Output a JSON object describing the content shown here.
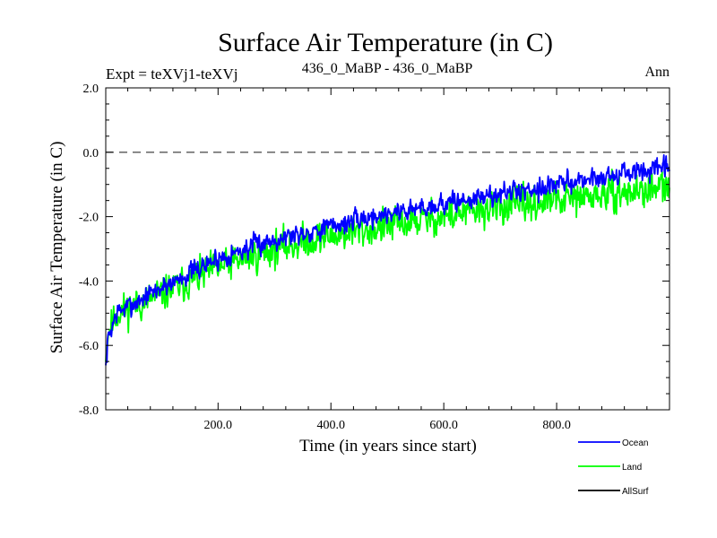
{
  "chart_data": {
    "type": "line",
    "title": "Surface Air Temperature (in C)",
    "subtitle_left": "Expt = teXVj1-teXVj",
    "subtitle_center": "436_0_MaBP - 436_0_MaBP",
    "subtitle_right": "Ann",
    "xlabel": "Time (in years since start)",
    "ylabel": "Surface Air Temperature (in C)",
    "xlim": [
      1,
      1000
    ],
    "ylim": [
      -8.0,
      2.0
    ],
    "xticks": [
      200,
      400,
      600,
      800
    ],
    "xtick_labels": [
      "200.0",
      "400.0",
      "600.0",
      "800.0"
    ],
    "yticks": [
      -8.0,
      -6.0,
      -4.0,
      -2.0,
      0.0,
      2.0
    ],
    "ytick_labels": [
      "-8.0",
      "-6.0",
      "-4.0",
      "-2.0",
      "0.0",
      "2.0"
    ],
    "reference_line": 0.0,
    "n_years": 1000,
    "legend": [
      {
        "name": "Ocean",
        "color": "#0000ff"
      },
      {
        "name": "Land",
        "color": "#00ff00"
      },
      {
        "name": "AllSurf",
        "color": "#000000"
      }
    ],
    "series": [
      {
        "name": "Land",
        "color": "#00ff00",
        "trend_x": [
          1,
          5,
          20,
          60,
          100,
          200,
          300,
          400,
          500,
          600,
          700,
          800,
          900,
          1000
        ],
        "trend_y": [
          -6.2,
          -5.6,
          -5.0,
          -4.7,
          -4.4,
          -3.6,
          -3.0,
          -2.6,
          -2.3,
          -2.0,
          -1.7,
          -1.5,
          -1.3,
          -1.1
        ],
        "noise_amplitude": 0.35,
        "seed": 11
      },
      {
        "name": "Ocean",
        "color": "#0000ff",
        "trend_x": [
          1,
          5,
          20,
          60,
          100,
          200,
          300,
          400,
          500,
          600,
          700,
          800,
          900,
          1000
        ],
        "trend_y": [
          -6.7,
          -5.8,
          -5.0,
          -4.6,
          -4.2,
          -3.3,
          -2.7,
          -2.3,
          -1.9,
          -1.6,
          -1.3,
          -1.0,
          -0.7,
          -0.5
        ],
        "noise_amplitude": 0.22,
        "seed": 7
      }
    ]
  }
}
